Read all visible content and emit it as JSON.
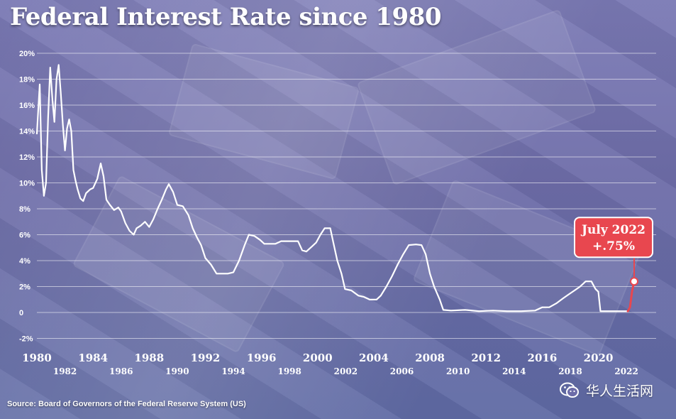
{
  "chart_data": {
    "type": "line",
    "title": "Federal Interest Rate since 1980",
    "ylim": [
      -2,
      20
    ],
    "xlim": [
      1980,
      2022.6
    ],
    "y_ticks": [
      20,
      18,
      16,
      14,
      12,
      10,
      8,
      6,
      4,
      2,
      0,
      -2
    ],
    "y_tick_labels": [
      "20%",
      "18%",
      "16%",
      "14%",
      "12%",
      "10%",
      "8%",
      "6%",
      "4%",
      "2%",
      "0",
      "-2%"
    ],
    "x_ticks_top": [
      1980,
      1984,
      1988,
      1992,
      1996,
      2000,
      2004,
      2008,
      2012,
      2016,
      2020
    ],
    "x_tick_labels_top": [
      "1980",
      "1984",
      "1988",
      "1992",
      "1996",
      "2000",
      "2004",
      "2008",
      "2012",
      "2016",
      "2020"
    ],
    "x_ticks_bottom": [
      1982,
      1986,
      1990,
      1994,
      1998,
      2002,
      2006,
      2010,
      2014,
      2018,
      2022
    ],
    "x_tick_labels_bottom": [
      "1982",
      "1986",
      "1990",
      "1994",
      "1998",
      "2002",
      "2006",
      "2010",
      "2014",
      "2018",
      "2022"
    ],
    "grid": true,
    "line_color": "#ffffff",
    "highlight_color": "#e8474f",
    "series": [
      {
        "values": [
          [
            1980.0,
            13.8
          ],
          [
            1980.2,
            17.6
          ],
          [
            1980.35,
            11.0
          ],
          [
            1980.5,
            9.0
          ],
          [
            1980.65,
            10.0
          ],
          [
            1980.8,
            15.0
          ],
          [
            1980.95,
            18.9
          ],
          [
            1981.1,
            16.5
          ],
          [
            1981.25,
            14.7
          ],
          [
            1981.4,
            18.0
          ],
          [
            1981.55,
            19.1
          ],
          [
            1981.7,
            17.0
          ],
          [
            1981.85,
            14.5
          ],
          [
            1982.0,
            12.5
          ],
          [
            1982.15,
            14.2
          ],
          [
            1982.3,
            14.9
          ],
          [
            1982.45,
            14.0
          ],
          [
            1982.6,
            11.0
          ],
          [
            1982.75,
            10.2
          ],
          [
            1982.9,
            9.5
          ],
          [
            1983.1,
            8.8
          ],
          [
            1983.3,
            8.6
          ],
          [
            1983.5,
            9.2
          ],
          [
            1983.8,
            9.5
          ],
          [
            1984.0,
            9.6
          ],
          [
            1984.3,
            10.3
          ],
          [
            1984.55,
            11.5
          ],
          [
            1984.75,
            10.5
          ],
          [
            1984.95,
            8.7
          ],
          [
            1985.2,
            8.3
          ],
          [
            1985.5,
            7.9
          ],
          [
            1985.8,
            8.1
          ],
          [
            1986.0,
            7.8
          ],
          [
            1986.3,
            6.9
          ],
          [
            1986.6,
            6.3
          ],
          [
            1986.9,
            6.0
          ],
          [
            1987.1,
            6.5
          ],
          [
            1987.4,
            6.7
          ],
          [
            1987.7,
            7.0
          ],
          [
            1988.0,
            6.6
          ],
          [
            1988.3,
            7.2
          ],
          [
            1988.6,
            8.0
          ],
          [
            1988.9,
            8.7
          ],
          [
            1989.2,
            9.5
          ],
          [
            1989.4,
            9.9
          ],
          [
            1989.7,
            9.3
          ],
          [
            1990.0,
            8.3
          ],
          [
            1990.4,
            8.2
          ],
          [
            1990.8,
            7.5
          ],
          [
            1991.1,
            6.5
          ],
          [
            1991.4,
            5.8
          ],
          [
            1991.7,
            5.2
          ],
          [
            1992.0,
            4.2
          ],
          [
            1992.4,
            3.7
          ],
          [
            1992.8,
            3.0
          ],
          [
            1993.2,
            3.0
          ],
          [
            1993.6,
            3.0
          ],
          [
            1994.0,
            3.1
          ],
          [
            1994.4,
            4.0
          ],
          [
            1994.8,
            5.2
          ],
          [
            1995.1,
            6.0
          ],
          [
            1995.5,
            5.9
          ],
          [
            1995.9,
            5.6
          ],
          [
            1996.2,
            5.3
          ],
          [
            1996.6,
            5.3
          ],
          [
            1997.0,
            5.3
          ],
          [
            1997.4,
            5.5
          ],
          [
            1997.8,
            5.5
          ],
          [
            1998.2,
            5.5
          ],
          [
            1998.6,
            5.5
          ],
          [
            1998.9,
            4.8
          ],
          [
            1999.2,
            4.7
          ],
          [
            1999.6,
            5.1
          ],
          [
            1999.9,
            5.4
          ],
          [
            2000.2,
            6.0
          ],
          [
            2000.5,
            6.5
          ],
          [
            2000.9,
            6.5
          ],
          [
            2001.1,
            5.5
          ],
          [
            2001.4,
            4.0
          ],
          [
            2001.7,
            3.0
          ],
          [
            2001.95,
            1.8
          ],
          [
            2002.4,
            1.7
          ],
          [
            2002.9,
            1.3
          ],
          [
            2003.3,
            1.2
          ],
          [
            2003.7,
            1.0
          ],
          [
            2004.2,
            1.0
          ],
          [
            2004.5,
            1.3
          ],
          [
            2004.9,
            2.0
          ],
          [
            2005.3,
            2.8
          ],
          [
            2005.7,
            3.7
          ],
          [
            2006.1,
            4.5
          ],
          [
            2006.5,
            5.2
          ],
          [
            2007.0,
            5.25
          ],
          [
            2007.4,
            5.2
          ],
          [
            2007.7,
            4.5
          ],
          [
            2008.0,
            3.0
          ],
          [
            2008.3,
            2.0
          ],
          [
            2008.7,
            1.0
          ],
          [
            2008.95,
            0.2
          ],
          [
            2009.5,
            0.15
          ],
          [
            2010.5,
            0.2
          ],
          [
            2011.5,
            0.1
          ],
          [
            2012.5,
            0.15
          ],
          [
            2013.5,
            0.1
          ],
          [
            2014.5,
            0.1
          ],
          [
            2015.5,
            0.15
          ],
          [
            2016.0,
            0.4
          ],
          [
            2016.5,
            0.4
          ],
          [
            2017.0,
            0.7
          ],
          [
            2017.5,
            1.1
          ],
          [
            2017.9,
            1.4
          ],
          [
            2018.3,
            1.7
          ],
          [
            2018.7,
            2.0
          ],
          [
            2019.1,
            2.4
          ],
          [
            2019.5,
            2.4
          ],
          [
            2019.8,
            1.8
          ],
          [
            2020.0,
            1.6
          ],
          [
            2020.15,
            0.1
          ],
          [
            2020.6,
            0.1
          ],
          [
            2021.2,
            0.1
          ],
          [
            2021.8,
            0.1
          ],
          [
            2022.1,
            0.1
          ]
        ]
      }
    ],
    "highlight_segment": [
      [
        2022.1,
        0.1
      ],
      [
        2022.25,
        0.4
      ],
      [
        2022.4,
        1.6
      ],
      [
        2022.55,
        2.4
      ]
    ],
    "annotation": {
      "line1": "July 2022",
      "line2": "+.75%",
      "x": 2022.55,
      "y": 2.4
    }
  },
  "source": "Source: Board of Governors of the Federal Reserve System (US)",
  "watermark": {
    "text": "华人生活网",
    "icon": "wechat-icon"
  }
}
